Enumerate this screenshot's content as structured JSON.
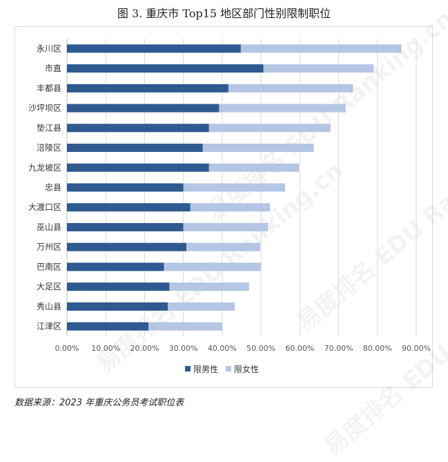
{
  "title": "图 3. 重庆市 Top15 地区部门性别限制职位",
  "source": "数据来源：2023 年重庆公务员考试职位表",
  "watermark": "易度排名 EDU Ranking.cn",
  "colors": {
    "male": "#2e5a91",
    "female": "#b4c6e3",
    "grid": "#d9d9d9",
    "axis_text": "#555555"
  },
  "chart_data": {
    "type": "bar",
    "orientation": "horizontal",
    "stacked": true,
    "categories": [
      "永川区",
      "市直",
      "丰都县",
      "沙坪坝区",
      "垫江县",
      "涪陵区",
      "九龙坡区",
      "忠县",
      "大渡口区",
      "巫山县",
      "万州区",
      "巴南区",
      "大足区",
      "秀山县",
      "江津区"
    ],
    "series": [
      {
        "name": "限男性",
        "values": [
          44.8,
          50.6,
          41.6,
          39.2,
          36.6,
          35.0,
          36.6,
          30.0,
          31.8,
          30.0,
          30.8,
          25.0,
          26.4,
          26.0,
          21.0
        ]
      },
      {
        "name": "限女性",
        "values": [
          41.4,
          28.4,
          32.1,
          32.6,
          31.3,
          28.6,
          23.2,
          26.2,
          20.5,
          21.8,
          19.0,
          25.0,
          20.5,
          17.2,
          19.0
        ]
      }
    ],
    "xlim": [
      0,
      90
    ],
    "xticks": [
      "0.00%",
      "10.00%",
      "20.00%",
      "30.00%",
      "40.00%",
      "50.00%",
      "60.00%",
      "70.00%",
      "80.00%",
      "90.00%"
    ],
    "grid": true,
    "legend": "bottom-center"
  }
}
